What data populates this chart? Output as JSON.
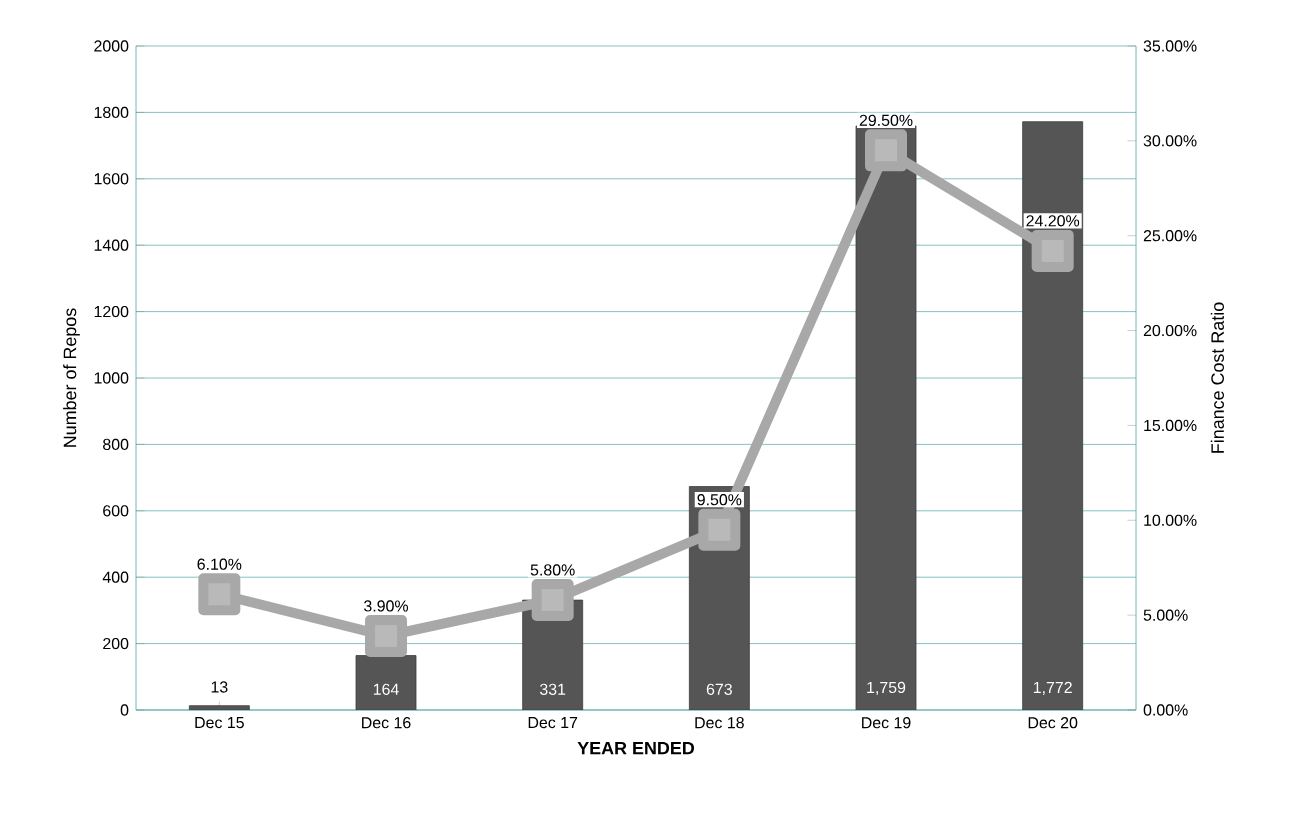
{
  "chart_data": {
    "type": "bar",
    "xlabel": "YEAR ENDED",
    "ylabel": "Number of Repos",
    "y2label": "Finance Cost Ratio",
    "categories": [
      "Dec 15",
      "Dec 16",
      "Dec 17",
      "Dec 18",
      "Dec 19",
      "Dec 20"
    ],
    "series": [
      {
        "color": "#555555",
        "values": [
          13,
          164,
          331,
          673,
          1759,
          1772
        ],
        "value_labels": [
          "13",
          "164",
          "331",
          "673",
          "1,759",
          "1,772"
        ]
      },
      {
        "type": "line",
        "axis": "y2",
        "color": "#a8a8a8",
        "marker": "square",
        "values": [
          6.1,
          3.9,
          5.8,
          9.5,
          29.5,
          24.2
        ],
        "value_labels": [
          "6.10%",
          "3.90%",
          "5.80%",
          "9.50%",
          "29.50%",
          "24.20%"
        ]
      }
    ],
    "ylim": [
      0,
      2000
    ],
    "yticks": [
      0,
      200,
      400,
      600,
      800,
      1000,
      1200,
      1400,
      1600,
      1800,
      2000
    ],
    "y2lim": [
      0,
      35
    ],
    "y2ticks": [
      {
        "value": 0,
        "label": "0.00%"
      },
      {
        "value": 5,
        "label": "5.00%"
      },
      {
        "value": 10,
        "label": "10.00%"
      },
      {
        "value": 15,
        "label": "15.00%"
      },
      {
        "value": 20,
        "label": "20.00%"
      },
      {
        "value": 25,
        "label": "25.00%"
      },
      {
        "value": 30,
        "label": "30.00%"
      },
      {
        "value": 35,
        "label": "35.00%"
      }
    ],
    "grid": "y"
  }
}
